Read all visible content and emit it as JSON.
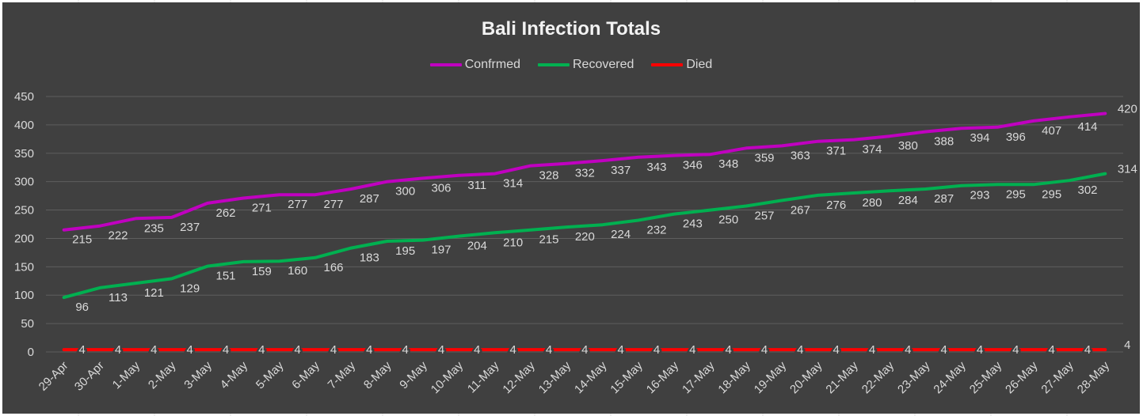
{
  "chart_data": {
    "type": "line",
    "title": "Bali Infection Totals",
    "xlabel": "",
    "ylabel": "",
    "ylim": [
      0,
      450
    ],
    "yticks": [
      0,
      50,
      100,
      150,
      200,
      250,
      300,
      350,
      400,
      450
    ],
    "grid": true,
    "legend_position": "top",
    "background": "#404040",
    "categories": [
      "29-Apr",
      "30-Apr",
      "1-May",
      "2-May",
      "3-May",
      "4-May",
      "5-May",
      "6-May",
      "7-May",
      "8-May",
      "9-May",
      "10-May",
      "11-May",
      "12-May",
      "13-May",
      "14-May",
      "15-May",
      "16-May",
      "17-May",
      "18-May",
      "19-May",
      "20-May",
      "21-May",
      "22-May",
      "23-May",
      "24-May",
      "25-May",
      "26-May",
      "27-May",
      "28-May"
    ],
    "series": [
      {
        "name": "Confrmed",
        "color": "#c000c0",
        "values": [
          215,
          222,
          235,
          237,
          262,
          271,
          277,
          277,
          287,
          300,
          306,
          311,
          314,
          328,
          332,
          337,
          343,
          346,
          348,
          359,
          363,
          371,
          374,
          380,
          388,
          394,
          396,
          407,
          414,
          420
        ]
      },
      {
        "name": "Recovered",
        "color": "#00b050",
        "values": [
          96,
          113,
          121,
          129,
          151,
          159,
          160,
          166,
          183,
          195,
          197,
          204,
          210,
          215,
          220,
          224,
          232,
          243,
          250,
          257,
          267,
          276,
          280,
          284,
          287,
          293,
          295,
          295,
          302,
          314
        ]
      },
      {
        "name": "Died",
        "color": "#ff0000",
        "values": [
          4,
          4,
          4,
          4,
          4,
          4,
          4,
          4,
          4,
          4,
          4,
          4,
          4,
          4,
          4,
          4,
          4,
          4,
          4,
          4,
          4,
          4,
          4,
          4,
          4,
          4,
          4,
          4,
          4,
          4
        ]
      }
    ]
  }
}
